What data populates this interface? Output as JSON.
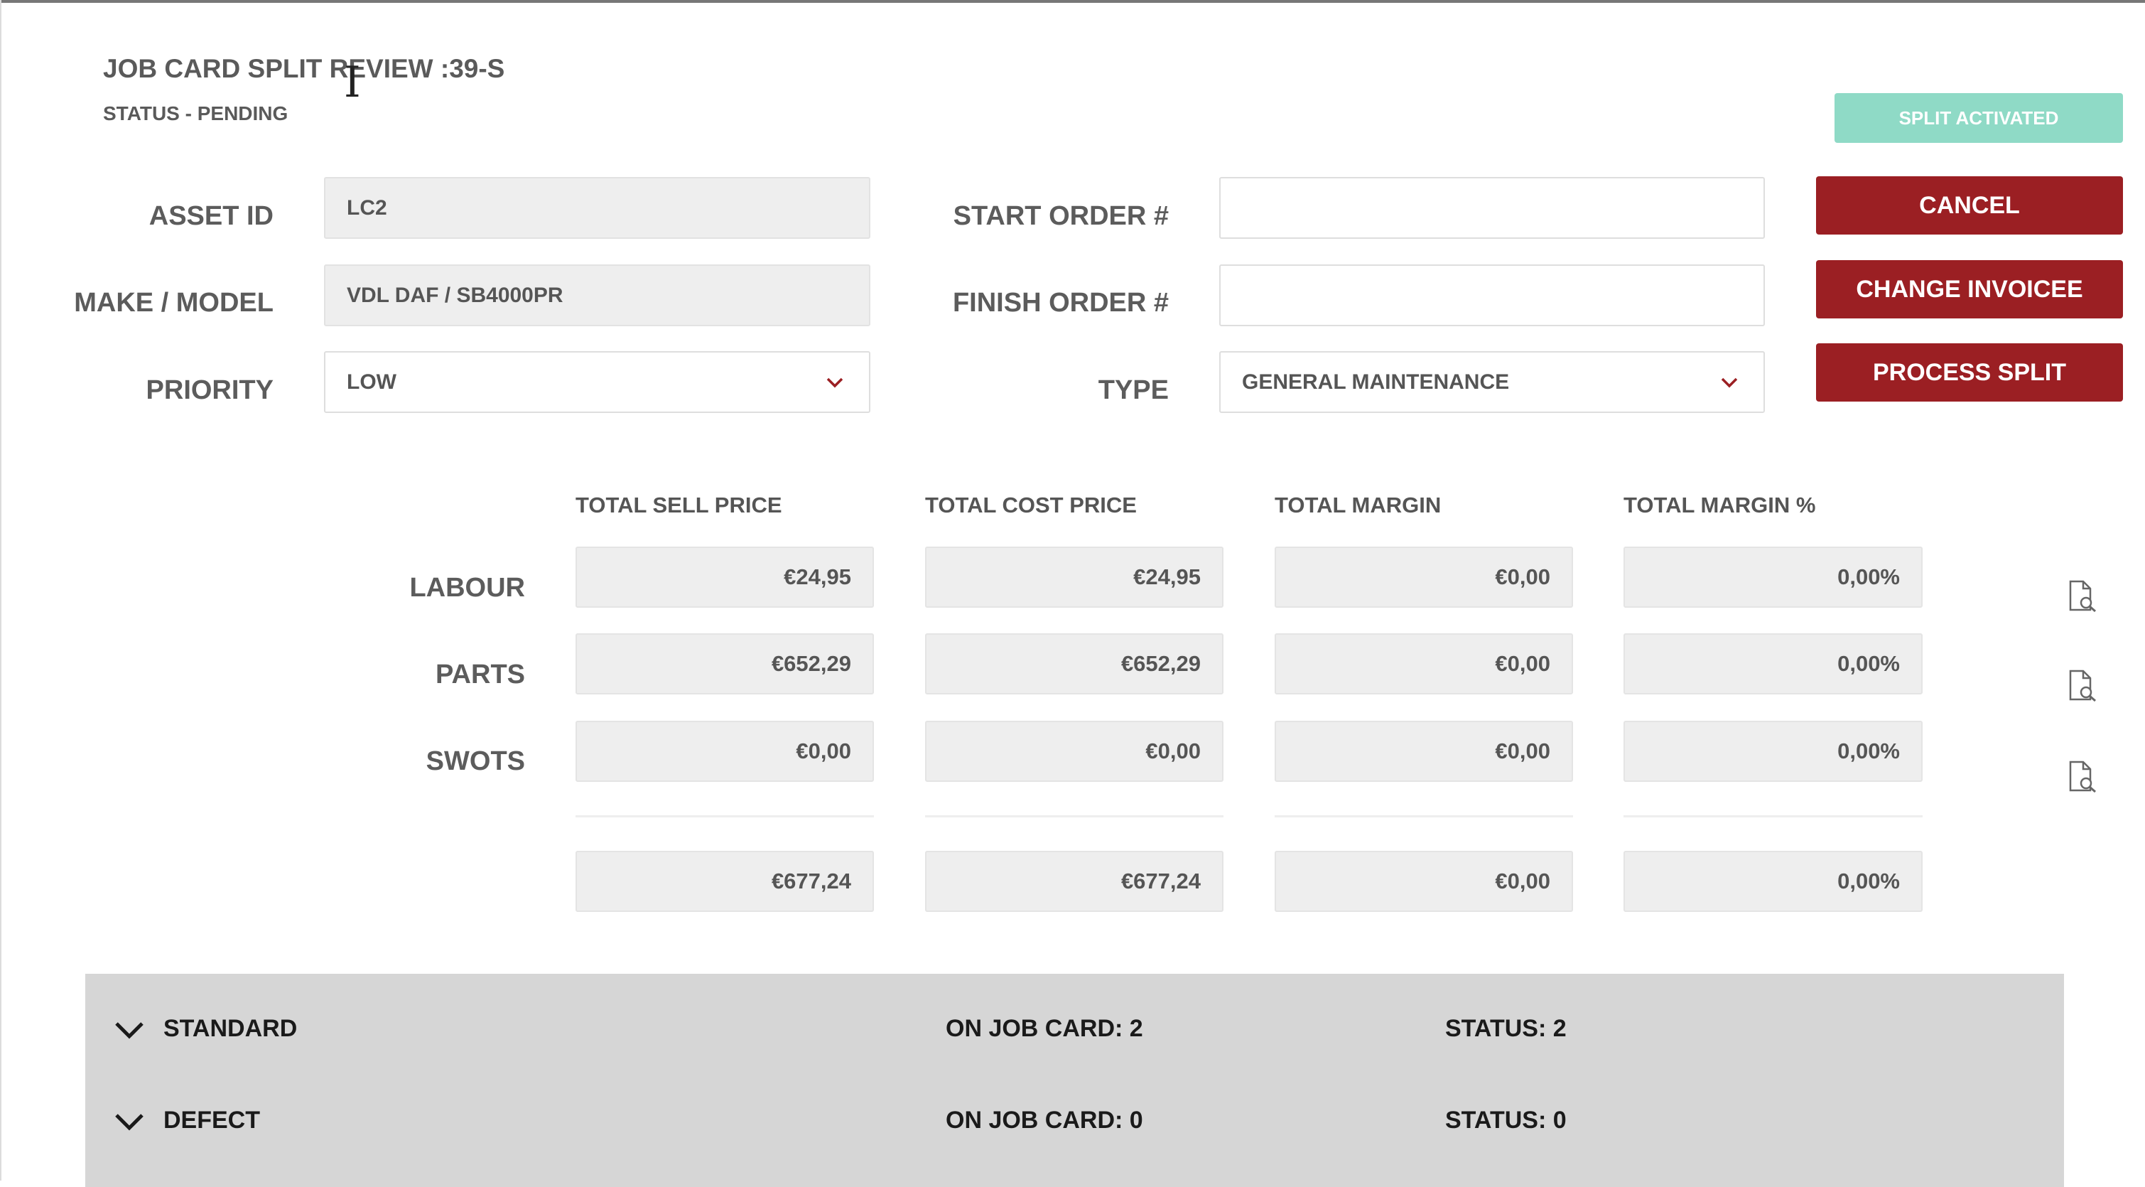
{
  "header": {
    "title": "JOB CARD SPLIT REVIEW :39-S",
    "status": "STATUS - PENDING"
  },
  "form": {
    "asset_id_label": "ASSET ID",
    "asset_id_value": "LC2",
    "make_model_label": "MAKE / MODEL",
    "make_model_value": "VDL DAF / SB4000PR",
    "priority_label": "PRIORITY",
    "priority_value": "LOW",
    "start_order_label": "START ORDER #",
    "start_order_value": "",
    "finish_order_label": "FINISH ORDER #",
    "finish_order_value": "",
    "type_label": "TYPE",
    "type_value": "GENERAL MAINTENANCE"
  },
  "buttons": {
    "split_activated": "SPLIT ACTIVATED",
    "cancel": "CANCEL",
    "change_invoicee": "CHANGE INVOICEE",
    "process_split": "PROCESS SPLIT"
  },
  "totals": {
    "columns": [
      "TOTAL SELL PRICE",
      "TOTAL COST PRICE",
      "TOTAL MARGIN",
      "TOTAL MARGIN %"
    ],
    "rows": [
      {
        "label": "LABOUR",
        "values": [
          "€24,95",
          "€24,95",
          "€0,00",
          "0,00%"
        ]
      },
      {
        "label": "PARTS",
        "values": [
          "€652,29",
          "€652,29",
          "€0,00",
          "0,00%"
        ]
      },
      {
        "label": "SWOTS",
        "values": [
          "€0,00",
          "€0,00",
          "€0,00",
          "0,00%"
        ]
      }
    ],
    "sum": [
      "€677,24",
      "€677,24",
      "€0,00",
      "0,00%"
    ]
  },
  "sections": [
    {
      "name": "STANDARD",
      "on_job_card": "ON JOB CARD: 2",
      "status": "STATUS: 2"
    },
    {
      "name": "DEFECT",
      "on_job_card": "ON JOB CARD: 0",
      "status": "STATUS: 0"
    }
  ],
  "colors": {
    "primary": "#9b1f23",
    "teal": "#8fdac6",
    "panel": "#d6d6d6"
  },
  "icons": [
    "chevron-down-icon",
    "document-search-icon",
    "cursor-ibeam-icon"
  ]
}
